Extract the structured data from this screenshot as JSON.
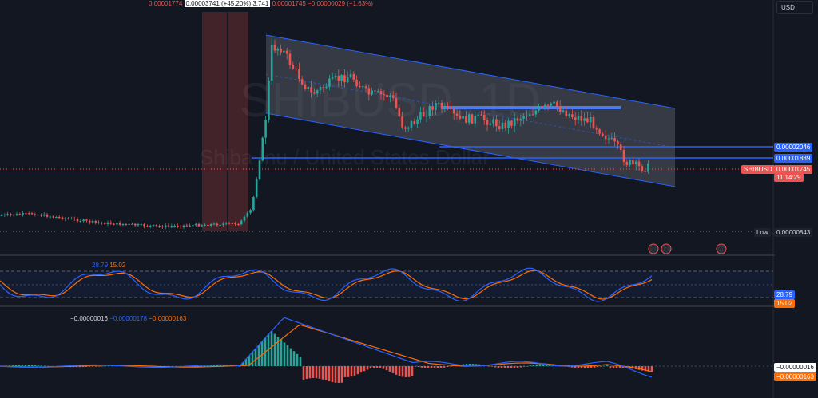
{
  "header": {
    "ohlc_text": "0.00001774",
    "tooltip_text": "0.00003741 (+45.20%) 3,741",
    "close_text": "0.00001745",
    "change_text": "−0.00000029 (−1.63%)",
    "currency_button": "USD"
  },
  "watermark": {
    "symbol": "SHIBUSD, 1D",
    "name": "Shiba Inu / United States Dollar"
  },
  "price_labels": {
    "level_1": "0.00002046",
    "level_2": "0.00001889",
    "symbol_tag": "SHIBUSD",
    "last_price": "0.00001745",
    "countdown": "11:14:29",
    "low_label": "Low",
    "low_value": "0.00000843"
  },
  "stochastic": {
    "k": "28.79",
    "d": "15.02",
    "k_color": "#2962ff",
    "d_color": "#ff6d00"
  },
  "macd": {
    "histogram": "−0.00000016",
    "macd": "−0.00000178",
    "signal": "−0.00000163",
    "label_hist": "−0.00000016",
    "label_signal": "−0.00000163"
  },
  "colors": {
    "up": "#26a69a",
    "down": "#ef5350",
    "background": "#131722",
    "channel_line": "#2962ff",
    "hline": "#2962ff"
  },
  "chart_data": {
    "type": "candlestick",
    "symbol": "SHIBUSD",
    "timeframe": "1D",
    "last_close": 1.745e-05,
    "low": 8.43e-06,
    "horizontal_levels": [
      2.046e-05,
      1.889e-05
    ],
    "stochastic_k": 28.79,
    "stochastic_d": 15.02,
    "macd_histogram": -1.6e-07,
    "macd_line": -1.78e-06,
    "macd_signal": -1.63e-06
  }
}
